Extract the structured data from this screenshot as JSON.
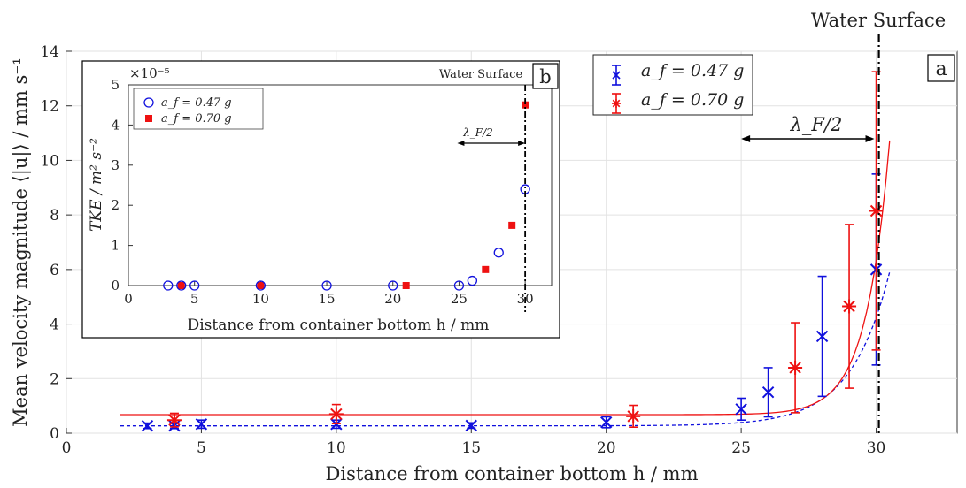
{
  "chart_data": [
    {
      "id": "main",
      "type": "scatter",
      "panel_label": "a",
      "xlabel": "Distance from container bottom h / mm",
      "ylabel": "Mean velocity magnitude ⟨|u|⟩ / mm s⁻¹",
      "xlim": [
        0,
        33
      ],
      "ylim": [
        0,
        14
      ],
      "xticks": [
        0,
        5,
        10,
        15,
        20,
        25,
        30
      ],
      "yticks": [
        0,
        2,
        4,
        6,
        8,
        10,
        12,
        14
      ],
      "grid": true,
      "legend_position": "top-right",
      "annotations": {
        "water_surface_label": "Water Surface",
        "water_surface_x": 30.1,
        "lambda_label": "λ_F/2",
        "lambda_from": 25,
        "lambda_to": 30
      },
      "series": [
        {
          "name": "a_f = 0.47 g",
          "color": "#1010dd",
          "marker": "x",
          "x": [
            3,
            4,
            5,
            10,
            15,
            20,
            25,
            26,
            28,
            30
          ],
          "y": [
            0.27,
            0.27,
            0.33,
            0.33,
            0.28,
            0.4,
            0.88,
            1.5,
            3.55,
            6.0
          ],
          "err": [
            0.1,
            0.1,
            0.15,
            0.15,
            0.1,
            0.2,
            0.4,
            0.9,
            2.2,
            3.5
          ],
          "fit": {
            "style": "dashed",
            "base": 0.27,
            "amp": 0.12,
            "rate": 0.7,
            "x0": 25,
            "x_range": [
              2,
              30.5
            ]
          }
        },
        {
          "name": "a_f = 0.70 g",
          "color": "#ee1111",
          "marker": "asterisk",
          "x": [
            4,
            10,
            21,
            27,
            29,
            30
          ],
          "y": [
            0.48,
            0.7,
            0.62,
            2.4,
            4.65,
            8.15
          ],
          "err": [
            0.25,
            0.35,
            0.4,
            1.65,
            3.0,
            5.1
          ],
          "fit": {
            "style": "solid",
            "base": 0.68,
            "amp": 0.018,
            "rate": 1.15,
            "x0": 25,
            "x_range": [
              2,
              30.5
            ]
          }
        }
      ]
    },
    {
      "id": "inset",
      "type": "scatter",
      "panel_label": "b",
      "xlabel": "Distance from container bottom h / mm",
      "ylabel": "TKE / m² s⁻²",
      "y_multiplier": "×10⁻⁵",
      "xlim": [
        0,
        32
      ],
      "ylim": [
        0,
        5
      ],
      "xticks": [
        0,
        5,
        10,
        15,
        20,
        25,
        30
      ],
      "yticks": [
        0,
        1,
        2,
        3,
        4,
        5
      ],
      "grid": false,
      "legend_position": "top-left",
      "annotations": {
        "water_surface_label": "Water Surface",
        "water_surface_x": 30,
        "lambda_label": "λ_F/2",
        "lambda_from": 25,
        "lambda_to": 30
      },
      "series": [
        {
          "name": "a_f = 0.47 g",
          "color": "#1010dd",
          "marker": "circle",
          "x": [
            3,
            4,
            5,
            10,
            15,
            20,
            25,
            26,
            28,
            30
          ],
          "y": [
            0,
            0,
            0,
            0,
            0,
            0,
            0,
            0.12,
            0.82,
            2.4
          ],
          "display": [
            "0",
            "0",
            "0",
            "0",
            "0",
            "0",
            "0",
            "0",
            "0.8",
            "2.4"
          ]
        },
        {
          "name": "a_f = 0.70 g",
          "color": "#ee1111",
          "marker": "square",
          "x": [
            4,
            10,
            21,
            27,
            29,
            30
          ],
          "y": [
            0,
            0,
            0,
            0.4,
            1.5,
            4.5
          ]
        }
      ]
    }
  ]
}
